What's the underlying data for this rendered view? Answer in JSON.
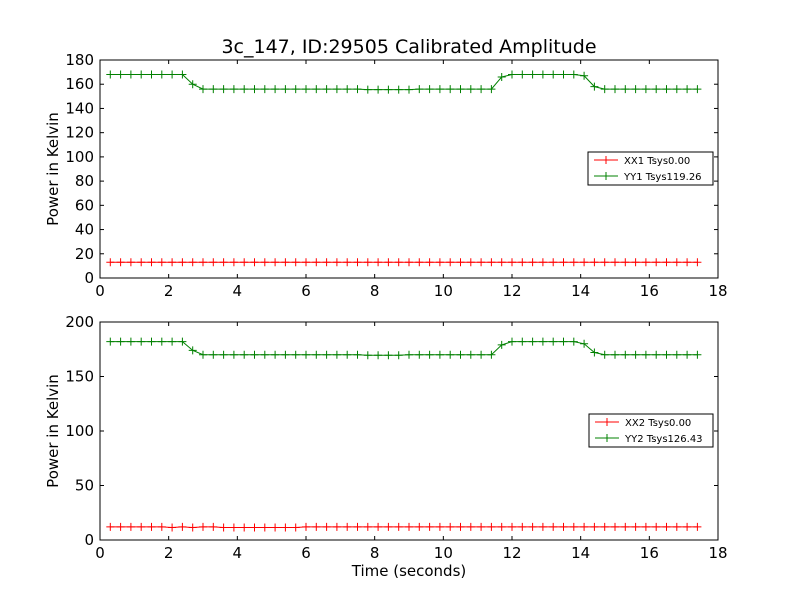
{
  "chart_data": [
    {
      "type": "line",
      "title": "3c_147, ID:29505 Calibrated Amplitude",
      "xlabel": "",
      "ylabel": "Power in Kelvin",
      "xlim": [
        0,
        18
      ],
      "ylim": [
        0,
        180
      ],
      "xticks": [
        0,
        2,
        4,
        6,
        8,
        10,
        12,
        14,
        16,
        18
      ],
      "yticks": [
        0,
        20,
        40,
        60,
        80,
        100,
        120,
        140,
        160,
        180
      ],
      "grid": false,
      "legend_position": "right",
      "x": [
        0.3,
        0.6,
        0.9,
        1.2,
        1.5,
        1.8,
        2.1,
        2.4,
        2.7,
        3.0,
        3.3,
        3.6,
        3.9,
        4.2,
        4.5,
        4.8,
        5.1,
        5.4,
        5.7,
        6.0,
        6.3,
        6.6,
        6.9,
        7.2,
        7.5,
        7.8,
        8.1,
        8.4,
        8.7,
        9.0,
        9.3,
        9.6,
        9.9,
        10.2,
        10.5,
        10.8,
        11.1,
        11.4,
        11.7,
        12.0,
        12.3,
        12.6,
        12.9,
        13.2,
        13.5,
        13.8,
        14.1,
        14.4,
        14.7,
        15.0,
        15.3,
        15.6,
        15.9,
        16.2,
        16.5,
        16.8,
        17.1,
        17.4
      ],
      "series": [
        {
          "name": "XX1 Tsys0.00",
          "color": "#ff0000",
          "values": [
            13,
            13,
            13,
            13,
            13,
            13,
            13,
            13,
            13,
            13,
            13,
            13,
            13,
            13,
            13,
            13,
            13,
            13,
            13,
            13,
            13,
            13,
            13,
            13,
            13,
            13,
            13,
            13,
            13,
            13,
            13,
            13,
            13,
            13,
            13,
            13,
            13,
            13,
            13,
            13,
            13,
            13,
            13,
            13,
            13,
            13,
            13,
            13,
            13,
            13,
            13,
            13,
            13,
            13,
            13,
            13,
            13,
            13
          ]
        },
        {
          "name": "YY1 Tsys119.26",
          "color": "#008000",
          "values": [
            168,
            168,
            168,
            168,
            168,
            168,
            168,
            168,
            160,
            156,
            156,
            156,
            156,
            156,
            156,
            156,
            156,
            156,
            156,
            156,
            156,
            156,
            156,
            156,
            156,
            155.5,
            155.5,
            155.5,
            155.5,
            155.5,
            156,
            156,
            156,
            156,
            156,
            156,
            156,
            156,
            166,
            168,
            168,
            168,
            168,
            168,
            168,
            168,
            167,
            158,
            156,
            156,
            156,
            156,
            156,
            156,
            156,
            156,
            156,
            156
          ]
        }
      ]
    },
    {
      "type": "line",
      "title": "",
      "xlabel": "Time (seconds)",
      "ylabel": "Power in Kelvin",
      "xlim": [
        0,
        18
      ],
      "ylim": [
        0,
        200
      ],
      "xticks": [
        0,
        2,
        4,
        6,
        8,
        10,
        12,
        14,
        16,
        18
      ],
      "yticks": [
        0,
        50,
        100,
        150,
        200
      ],
      "grid": false,
      "legend_position": "right",
      "x": [
        0.3,
        0.6,
        0.9,
        1.2,
        1.5,
        1.8,
        2.1,
        2.4,
        2.7,
        3.0,
        3.3,
        3.6,
        3.9,
        4.2,
        4.5,
        4.8,
        5.1,
        5.4,
        5.7,
        6.0,
        6.3,
        6.6,
        6.9,
        7.2,
        7.5,
        7.8,
        8.1,
        8.4,
        8.7,
        9.0,
        9.3,
        9.6,
        9.9,
        10.2,
        10.5,
        10.8,
        11.1,
        11.4,
        11.7,
        12.0,
        12.3,
        12.6,
        12.9,
        13.2,
        13.5,
        13.8,
        14.1,
        14.4,
        14.7,
        15.0,
        15.3,
        15.6,
        15.9,
        16.2,
        16.5,
        16.8,
        17.1,
        17.4
      ],
      "series": [
        {
          "name": "XX2 Tsys0.00",
          "color": "#ff0000",
          "values": [
            12,
            12,
            12,
            12,
            12,
            12,
            11.5,
            12,
            11.5,
            12,
            12,
            11.5,
            11.5,
            11.5,
            11.5,
            11.5,
            11.5,
            11.5,
            11.5,
            12,
            12,
            12,
            12,
            12,
            12,
            12,
            12,
            12,
            12,
            12,
            12,
            12,
            12,
            12,
            12,
            12,
            12,
            12,
            12,
            12,
            12,
            12,
            12,
            12,
            12,
            12,
            12,
            12,
            12,
            12,
            12,
            12,
            12,
            12,
            12,
            12,
            12,
            12
          ]
        },
        {
          "name": "YY2 Tsys126.43",
          "color": "#008000",
          "values": [
            182,
            182,
            182,
            182,
            182,
            182,
            182,
            182,
            174,
            170,
            170,
            170,
            170,
            170,
            170,
            170,
            170,
            170,
            170,
            170,
            170,
            170,
            170,
            170,
            170,
            169.5,
            169.5,
            169.5,
            169.5,
            170,
            170,
            170,
            170,
            170,
            170,
            170,
            170,
            170,
            179,
            182,
            182,
            182,
            182,
            182,
            182,
            182,
            180,
            172,
            170,
            170,
            170,
            170,
            170,
            170,
            170,
            170,
            170,
            170
          ]
        }
      ]
    }
  ]
}
